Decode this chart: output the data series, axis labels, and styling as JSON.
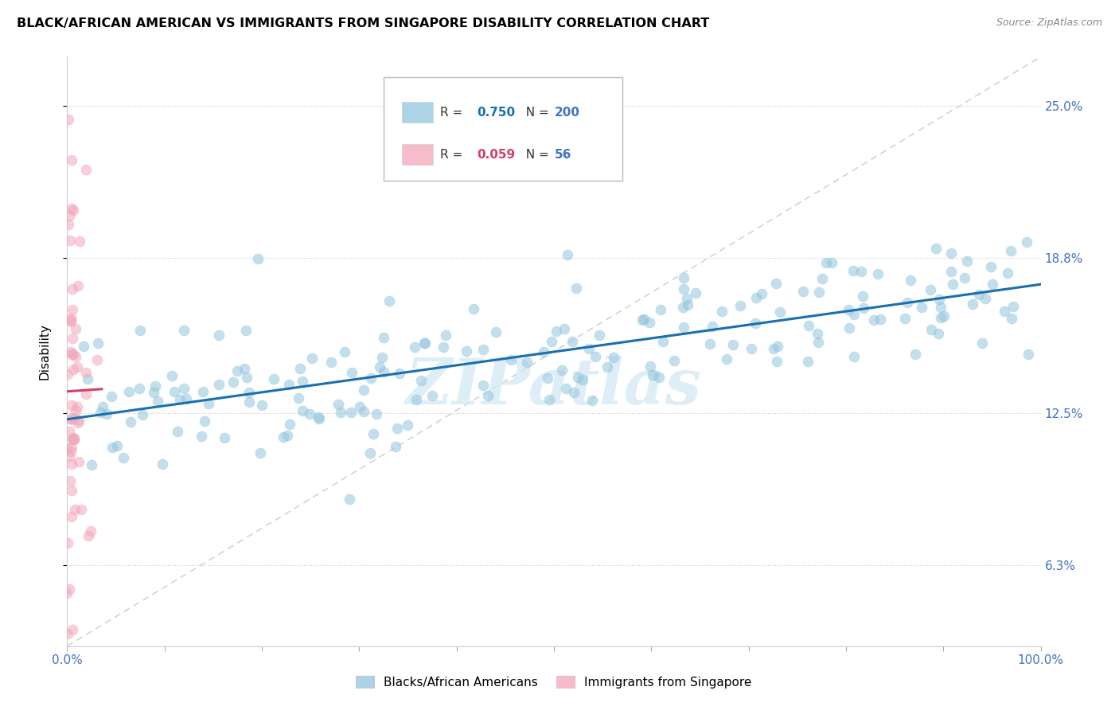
{
  "title": "BLACK/AFRICAN AMERICAN VS IMMIGRANTS FROM SINGAPORE DISABILITY CORRELATION CHART",
  "source": "Source: ZipAtlas.com",
  "ylabel": "Disability",
  "xlim": [
    0,
    1.0
  ],
  "ylim": [
    0.03,
    0.27
  ],
  "yticks": [
    0.063,
    0.125,
    0.188,
    0.25
  ],
  "ytick_labels": [
    "6.3%",
    "12.5%",
    "18.8%",
    "25.0%"
  ],
  "legend_blue_R": "0.750",
  "legend_blue_N": "200",
  "legend_pink_R": "0.059",
  "legend_pink_N": "56",
  "blue_color": "#92c5de",
  "pink_color": "#f4a6b8",
  "blue_line_color": "#1a6faf",
  "pink_line_color": "#d43f6a",
  "watermark": "ZIPatlas",
  "axis_color": "#4472c4",
  "right_label_color": "#4472c4"
}
